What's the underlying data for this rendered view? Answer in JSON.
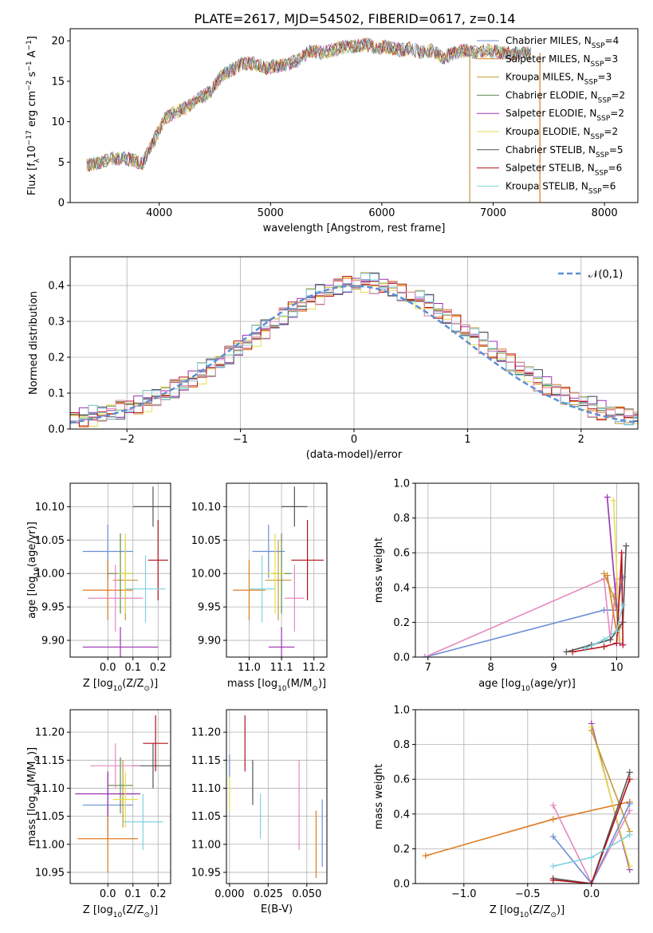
{
  "figure": {
    "title": "PLATE=2617, MJD=54502, FIBERID=0617, z=0.14"
  },
  "chart_data": [
    {
      "id": "spectrum",
      "type": "line",
      "xlabel": "wavelength [Angstrom, rest frame]",
      "ylabel_parts": [
        "Flux [f",
        "λ",
        "10",
        "−17",
        " erg cm",
        "−2",
        " s",
        "−1",
        " A",
        "−1",
        "]"
      ],
      "xlim": [
        3200,
        8300
      ],
      "ylim": [
        0,
        21.5
      ],
      "xticks": [
        4000,
        5000,
        6000,
        7000,
        8000
      ],
      "yticks": [
        0,
        5,
        10,
        15,
        20
      ],
      "grid": false,
      "legend_position": "right",
      "series_note": "9 overlapping spectrum models; values estimated from continuum shape",
      "x": [
        3350,
        3450,
        3550,
        3650,
        3750,
        3850,
        3950,
        4050,
        4150,
        4250,
        4350,
        4450,
        4550,
        4650,
        4750,
        4850,
        4950,
        5050,
        5150,
        5250,
        5350,
        5450,
        5550,
        5650,
        5750,
        5850,
        5950,
        6050,
        6150,
        6250,
        6350,
        6450,
        6550,
        6650,
        6750,
        6850,
        6950,
        7050,
        7150,
        7250,
        7350
      ],
      "y": [
        4.6,
        4.9,
        5.4,
        5.5,
        5.3,
        4.8,
        7.6,
        10.4,
        11.2,
        11.8,
        12.9,
        13.6,
        15.5,
        16.4,
        17.2,
        17.2,
        16.6,
        16.9,
        17.1,
        17.6,
        18.7,
        18.5,
        18.8,
        19.2,
        19.3,
        19.6,
        19.1,
        19.3,
        18.9,
        19.0,
        18.6,
        18.8,
        17.9,
        18.5,
        18.8,
        18.6,
        18.8,
        18.6,
        18.4,
        18.5,
        18.3
      ],
      "legend": [
        {
          "label": "Chabrier MILES, N",
          "sub": "SSP",
          "tail": "=4",
          "color": "#6b8fd6"
        },
        {
          "label": "Salpeter MILES, N",
          "sub": "SSP",
          "tail": "=3",
          "color": "#e07b22"
        },
        {
          "label": "Kroupa MILES, N",
          "sub": "SSP",
          "tail": "=3",
          "color": "#c4993b"
        },
        {
          "label": "Chabrier ELODIE, N",
          "sub": "SSP",
          "tail": "=2",
          "color": "#5c8a4d"
        },
        {
          "label": "Salpeter ELODIE, N",
          "sub": "SSP",
          "tail": "=2",
          "color": "#9b32b0"
        },
        {
          "label": "Kroupa ELODIE, N",
          "sub": "SSP",
          "tail": "=2",
          "color": "#e6de4a"
        },
        {
          "label": "Chabrier STELIB, N",
          "sub": "SSP",
          "tail": "=5",
          "color": "#555555"
        },
        {
          "label": "Salpeter STELIB, N",
          "sub": "SSP",
          "tail": "=6",
          "color": "#b3111a"
        },
        {
          "label": "Kroupa STELIB, N",
          "sub": "SSP",
          "tail": "=6",
          "color": "#7fd3de"
        }
      ]
    },
    {
      "id": "residuals",
      "type": "histogram",
      "xlabel": "(data-model)/error",
      "ylabel": "Normed distribution",
      "xlim": [
        -2.5,
        2.5
      ],
      "ylim": [
        0,
        0.48
      ],
      "xticks": [
        -2,
        -1,
        0,
        1,
        2
      ],
      "yticks": [
        0.0,
        0.1,
        0.2,
        0.3,
        0.4
      ],
      "grid": true,
      "legend": [
        {
          "label": "𝒩(0,1)",
          "color": "#5b8fd4",
          "style": "dashed"
        }
      ],
      "legend_position": "upper right",
      "bin_width": 0.1,
      "bin_start": -2.5,
      "values": [
        0.03,
        0.033,
        0.037,
        0.042,
        0.047,
        0.053,
        0.06,
        0.068,
        0.078,
        0.088,
        0.1,
        0.112,
        0.125,
        0.14,
        0.155,
        0.171,
        0.188,
        0.206,
        0.224,
        0.242,
        0.26,
        0.278,
        0.296,
        0.314,
        0.331,
        0.347,
        0.362,
        0.375,
        0.386,
        0.396,
        0.402,
        0.406,
        0.408,
        0.406,
        0.4,
        0.39,
        0.38,
        0.37,
        0.36,
        0.345,
        0.33,
        0.312,
        0.294,
        0.276,
        0.258,
        0.24,
        0.222,
        0.204,
        0.186,
        0.169,
        0.152,
        0.136,
        0.121,
        0.107,
        0.094,
        0.082,
        0.071,
        0.062,
        0.053,
        0.046,
        0.04,
        0.034,
        0.03
      ]
    },
    {
      "id": "age-vs-Z",
      "type": "errorbar",
      "xlabel": "Z [log",
      "xlabel_parts": [
        "Z [log",
        "10",
        "(Z/Z",
        "⊙",
        ")]"
      ],
      "ylabel_parts": [
        "age  [log",
        "10",
        "(age/yr)]"
      ],
      "xlim": [
        -0.15,
        0.25
      ],
      "ylim": [
        9.875,
        10.135
      ],
      "xticks": [
        0.0,
        0.1,
        0.2
      ],
      "yticks": [
        9.9,
        9.95,
        10.0,
        10.05,
        10.1
      ],
      "points": [
        {
          "x": 0.0,
          "y": 10.033,
          "ex": 0.1,
          "ey": 0.04,
          "color": "#6b8fd6"
        },
        {
          "x": 0.0,
          "y": 9.975,
          "ex": 0.1,
          "ey": 0.045,
          "color": "#e07b22"
        },
        {
          "x": 0.07,
          "y": 9.99,
          "ex": 0.05,
          "ey": 0.06,
          "color": "#c4993b"
        },
        {
          "x": 0.05,
          "y": 10.0,
          "ex": 0.05,
          "ey": 0.06,
          "color": "#5c8a4d"
        },
        {
          "x": 0.05,
          "y": 9.89,
          "ex": 0.15,
          "ey": 0.03,
          "color": "#9b32b0"
        },
        {
          "x": 0.07,
          "y": 10.0,
          "ex": 0.03,
          "ey": 0.06,
          "color": "#e6de4a"
        },
        {
          "x": 0.18,
          "y": 10.1,
          "ex": 0.08,
          "ey": 0.03,
          "color": "#555555"
        },
        {
          "x": 0.2,
          "y": 10.02,
          "ex": 0.04,
          "ey": 0.06,
          "color": "#b3111a"
        },
        {
          "x": 0.15,
          "y": 9.977,
          "ex": 0.08,
          "ey": 0.05,
          "color": "#7fd3de"
        },
        {
          "x": 0.03,
          "y": 9.963,
          "ex": 0.11,
          "ey": 0.05,
          "color": "#e589bf"
        }
      ]
    },
    {
      "id": "age-vs-mass",
      "type": "errorbar",
      "xlabel_parts": [
        "mass [log",
        "10",
        "(M/M",
        "⊙",
        ")]"
      ],
      "xlim": [
        10.93,
        11.24
      ],
      "ylim": [
        9.875,
        10.135
      ],
      "xticks": [
        11.0,
        11.1,
        11.2
      ],
      "yticks": [
        9.9,
        9.95,
        10.0,
        10.05,
        10.1
      ],
      "points": [
        {
          "x": 11.06,
          "y": 10.033,
          "ex": 0.05,
          "ey": 0.04,
          "color": "#6b8fd6"
        },
        {
          "x": 11.0,
          "y": 9.975,
          "ex": 0.05,
          "ey": 0.045,
          "color": "#e07b22"
        },
        {
          "x": 11.09,
          "y": 9.99,
          "ex": 0.04,
          "ey": 0.06,
          "color": "#c4993b"
        },
        {
          "x": 11.1,
          "y": 10.0,
          "ex": 0.03,
          "ey": 0.06,
          "color": "#5c8a4d"
        },
        {
          "x": 11.1,
          "y": 9.89,
          "ex": 0.04,
          "ey": 0.03,
          "color": "#9b32b0"
        },
        {
          "x": 11.08,
          "y": 10.0,
          "ex": 0.03,
          "ey": 0.06,
          "color": "#e6de4a"
        },
        {
          "x": 11.14,
          "y": 10.1,
          "ex": 0.04,
          "ey": 0.03,
          "color": "#555555"
        },
        {
          "x": 11.18,
          "y": 10.02,
          "ex": 0.05,
          "ey": 0.06,
          "color": "#b3111a"
        },
        {
          "x": 11.04,
          "y": 9.977,
          "ex": 0.04,
          "ey": 0.05,
          "color": "#7fd3de"
        },
        {
          "x": 11.14,
          "y": 9.963,
          "ex": 0.03,
          "ey": 0.05,
          "color": "#e589bf"
        }
      ]
    },
    {
      "id": "weight-vs-age",
      "type": "line",
      "xlabel_parts": [
        "age  [log",
        "10",
        "(age/yr)]"
      ],
      "ylabel": "mass weight",
      "xlim": [
        6.8,
        10.35
      ],
      "ylim": [
        0,
        1.0
      ],
      "xticks": [
        7,
        8,
        9,
        10
      ],
      "yticks": [
        0.0,
        0.2,
        0.4,
        0.6,
        0.8,
        1.0
      ],
      "series": [
        {
          "color": "#6b8fd6",
          "x": [
            6.95,
            9.8,
            10.0,
            10.1
          ],
          "y": [
            0.0,
            0.27,
            0.27,
            0.46
          ]
        },
        {
          "color": "#e589bf",
          "x": [
            6.95,
            9.8,
            9.9,
            10.0
          ],
          "y": [
            0.0,
            0.45,
            0.1,
            0.45
          ]
        },
        {
          "color": "#9b32b0",
          "x": [
            9.85,
            10.05
          ],
          "y": [
            0.92,
            0.08
          ]
        },
        {
          "color": "#e6de4a",
          "x": [
            9.95,
            10.05
          ],
          "y": [
            0.9,
            0.1
          ]
        },
        {
          "color": "#c4993b",
          "x": [
            9.8,
            9.95,
            10.05
          ],
          "y": [
            0.48,
            0.35,
            0.17
          ]
        },
        {
          "color": "#e07b22",
          "x": [
            9.85,
            10.0
          ],
          "y": [
            0.47,
            0.14
          ]
        },
        {
          "color": "#555555",
          "x": [
            9.2,
            9.6,
            9.9,
            10.1,
            10.15
          ],
          "y": [
            0.03,
            0.07,
            0.1,
            0.2,
            0.64
          ]
        },
        {
          "color": "#b3111a",
          "x": [
            9.3,
            9.8,
            10.0,
            10.08,
            10.1
          ],
          "y": [
            0.03,
            0.06,
            0.08,
            0.6,
            0.07
          ]
        },
        {
          "color": "#7fd3de",
          "x": [
            9.5,
            9.8,
            10.0,
            10.1
          ],
          "y": [
            0.05,
            0.1,
            0.15,
            0.3
          ]
        }
      ]
    },
    {
      "id": "mass-vs-Z",
      "type": "errorbar",
      "xlabel_parts": [
        "Z [log",
        "10",
        "(Z/Z",
        "⊙",
        ")]"
      ],
      "ylabel_parts": [
        "mass [log",
        "10",
        "(M/M",
        "⊙",
        ")]"
      ],
      "xlim": [
        -0.15,
        0.25
      ],
      "ylim": [
        10.93,
        11.24
      ],
      "xticks": [
        0.0,
        0.1,
        0.2
      ],
      "yticks": [
        10.95,
        11.0,
        11.05,
        11.1,
        11.15,
        11.2
      ],
      "points": [
        {
          "x": 0.0,
          "y": 11.07,
          "ex": 0.1,
          "ey": 0.06,
          "color": "#6b8fd6"
        },
        {
          "x": 0.0,
          "y": 11.01,
          "ex": 0.12,
          "ey": 0.06,
          "color": "#e07b22"
        },
        {
          "x": 0.06,
          "y": 11.09,
          "ex": 0.05,
          "ey": 0.06,
          "color": "#c4993b"
        },
        {
          "x": 0.05,
          "y": 11.105,
          "ex": 0.05,
          "ey": 0.05,
          "color": "#5c8a4d"
        },
        {
          "x": 0.0,
          "y": 11.09,
          "ex": 0.13,
          "ey": 0.04,
          "color": "#9b32b0"
        },
        {
          "x": 0.07,
          "y": 11.08,
          "ex": 0.05,
          "ey": 0.05,
          "color": "#e6de4a"
        },
        {
          "x": 0.18,
          "y": 11.14,
          "ex": 0.08,
          "ey": 0.04,
          "color": "#555555"
        },
        {
          "x": 0.19,
          "y": 11.18,
          "ex": 0.05,
          "ey": 0.05,
          "color": "#b3111a"
        },
        {
          "x": 0.14,
          "y": 11.04,
          "ex": 0.08,
          "ey": 0.05,
          "color": "#7fd3de"
        },
        {
          "x": 0.03,
          "y": 11.14,
          "ex": 0.1,
          "ey": 0.04,
          "color": "#e589bf"
        }
      ]
    },
    {
      "id": "mass-vs-EBV",
      "type": "errorbar",
      "xlabel": "E(B-V)",
      "xlim": [
        -0.002,
        0.063
      ],
      "ylim": [
        10.93,
        11.24
      ],
      "xticks": [
        0.0,
        0.025,
        0.05
      ],
      "yticks": [
        10.95,
        11.0,
        11.05,
        11.1,
        11.15,
        11.2
      ],
      "points": [
        {
          "x": 0.0,
          "y": 11.11,
          "ex": 0,
          "ey": 0.05,
          "color": "#e6de4a"
        },
        {
          "x": 0.0,
          "y": 11.14,
          "ex": 0,
          "ey": 0.02,
          "color": "#6b8fd6"
        },
        {
          "x": 0.01,
          "y": 11.18,
          "ex": 0,
          "ey": 0.05,
          "color": "#b3111a"
        },
        {
          "x": 0.015,
          "y": 11.11,
          "ex": 0,
          "ey": 0.04,
          "color": "#555555"
        },
        {
          "x": 0.02,
          "y": 11.05,
          "ex": 0,
          "ey": 0.04,
          "color": "#7fd3de"
        },
        {
          "x": 0.045,
          "y": 11.07,
          "ex": 0,
          "ey": 0.08,
          "color": "#e589bf"
        },
        {
          "x": 0.056,
          "y": 11.0,
          "ex": 0,
          "ey": 0.06,
          "color": "#e07b22"
        },
        {
          "x": 0.06,
          "y": 11.02,
          "ex": 0,
          "ey": 0.06,
          "color": "#6b8fd6"
        }
      ]
    },
    {
      "id": "weight-vs-Z",
      "type": "line",
      "xlabel_parts": [
        "Z [log",
        "10",
        "(Z/Z",
        "⊙",
        ")]"
      ],
      "ylabel": "mass weight",
      "xlim": [
        -1.38,
        0.37
      ],
      "ylim": [
        0,
        1.0
      ],
      "xticks": [
        -1.0,
        -0.5,
        0.0
      ],
      "xtick_labels": [
        "−1.0",
        "−0.5",
        "0.0"
      ],
      "yticks": [
        0.0,
        0.2,
        0.4,
        0.6,
        0.8,
        1.0
      ],
      "series": [
        {
          "color": "#e07b22",
          "x": [
            -1.3,
            -0.3,
            0.3
          ],
          "y": [
            0.16,
            0.37,
            0.47
          ]
        },
        {
          "color": "#e589bf",
          "x": [
            -0.3,
            0.0,
            0.3
          ],
          "y": [
            0.45,
            0.0,
            0.42
          ]
        },
        {
          "color": "#9b32b0",
          "x": [
            0.0,
            0.3
          ],
          "y": [
            0.92,
            0.08
          ]
        },
        {
          "color": "#e6de4a",
          "x": [
            0.0,
            0.3
          ],
          "y": [
            0.9,
            0.1
          ]
        },
        {
          "color": "#c4993b",
          "x": [
            0.0,
            0.3
          ],
          "y": [
            0.88,
            0.3
          ]
        },
        {
          "color": "#6b8fd6",
          "x": [
            -0.3,
            0.0,
            0.3
          ],
          "y": [
            0.27,
            0.0,
            0.46
          ]
        },
        {
          "color": "#555555",
          "x": [
            -0.3,
            0.0,
            0.3
          ],
          "y": [
            0.03,
            0.0,
            0.64
          ]
        },
        {
          "color": "#b3111a",
          "x": [
            -0.3,
            0.0,
            0.3
          ],
          "y": [
            0.02,
            0.0,
            0.6
          ]
        },
        {
          "color": "#7fd3de",
          "x": [
            -0.3,
            0.0,
            0.3
          ],
          "y": [
            0.1,
            0.15,
            0.28
          ]
        }
      ]
    }
  ]
}
